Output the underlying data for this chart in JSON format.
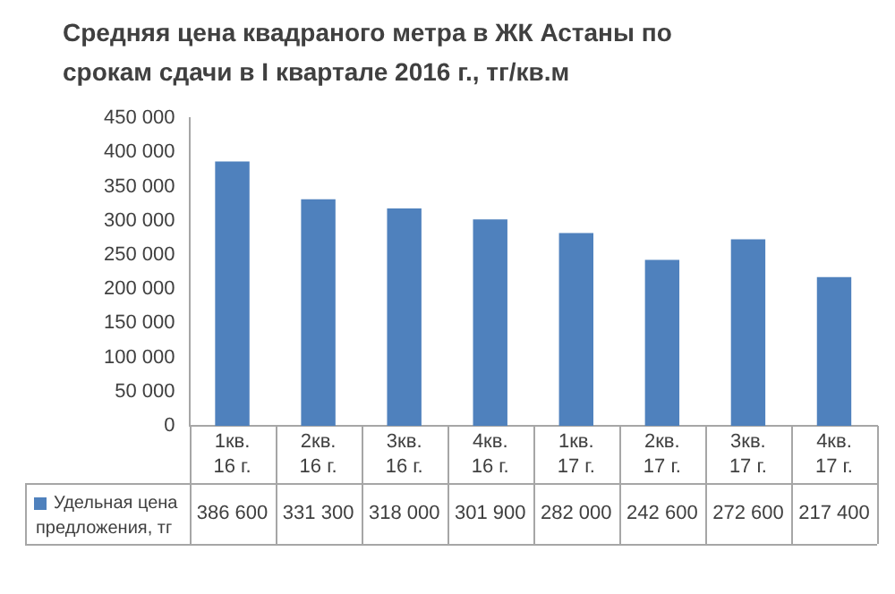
{
  "chart_data": {
    "type": "bar",
    "title": "Средняя цена квадраного метра в ЖК Астаны по срокам сдачи в I квартале 2016 г., тг/кв.м",
    "categories": [
      "1кв. 16 г.",
      "2кв. 16 г.",
      "3кв. 16 г.",
      "4кв. 16 г.",
      "1кв. 17 г.",
      "2кв. 17 г.",
      "3кв. 17 г.",
      "4кв. 17 г."
    ],
    "series": [
      {
        "name": "Удельная цена предложения, тг",
        "color": "#4f81bd",
        "values": [
          386600,
          331300,
          318000,
          301900,
          282000,
          242600,
          272600,
          217400
        ],
        "value_labels": [
          "386 600",
          "331 300",
          "318 000",
          "301 900",
          "282 000",
          "242 600",
          "272 600",
          "217 400"
        ]
      }
    ],
    "ylim": [
      0,
      450000
    ],
    "yticks": [
      0,
      {
        "value": 50000,
        "label": "50 000"
      },
      {
        "value": 100000,
        "label": "100 000"
      },
      {
        "value": 150000,
        "label": "150 000"
      },
      {
        "value": 200000,
        "label": "200 000"
      },
      {
        "value": 250000,
        "label": "250 000"
      },
      {
        "value": 300000,
        "label": "300 000"
      },
      {
        "value": 350000,
        "label": "350 000"
      },
      {
        "value": 400000,
        "label": "400 000"
      },
      {
        "value": 450000,
        "label": "450 000"
      }
    ],
    "legend": "bottom"
  }
}
